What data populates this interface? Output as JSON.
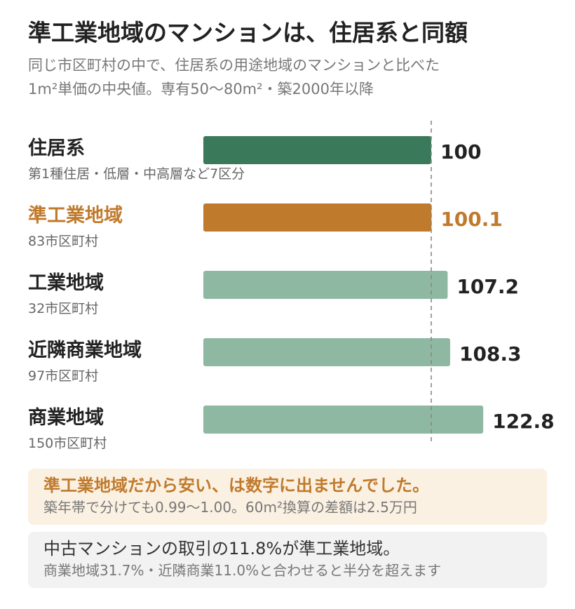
{
  "header": {
    "title": "準工業地域のマンションは、住居系と同額",
    "subtitle_line1": "同じ市区町村の中で、住居系の用途地域のマンションと比べた",
    "subtitle_line2": "1m²単価の中央値。専有50〜80m²・築2000年以降"
  },
  "chart_data": {
    "type": "bar",
    "orientation": "horizontal",
    "categories": [
      "住居系",
      "準工業地域",
      "工業地域",
      "近隣商業地域",
      "商業地域"
    ],
    "subcategories": [
      "第1種住居・低層・中高層など7区分",
      "83市区町村",
      "32市区町村",
      "97市区町村",
      "150市区町村"
    ],
    "values": [
      100,
      100.1,
      107.2,
      108.3,
      122.8
    ],
    "value_labels": [
      "100",
      "100.1",
      "107.2",
      "108.3",
      "122.8"
    ],
    "reference_line": 100,
    "colors": {
      "base": "#3a7a5b",
      "highlight": "#c07a2c",
      "other": "#8fb8a3",
      "reference": "#888888"
    },
    "bar_colors": [
      "#3a7a5b",
      "#c07a2c",
      "#8fb8a3",
      "#8fb8a3",
      "#8fb8a3"
    ],
    "label_colors": [
      "#222222",
      "#c07a2c",
      "#222222",
      "#222222",
      "#222222"
    ],
    "highlight_index": 1
  },
  "callouts": {
    "orange": {
      "headline": "準工業地域だから安い、は数字に出ませんでした。",
      "body": "築年帯で分けても0.99〜1.00。60m²換算の差額は2.5万円",
      "accent": "#c07a2c"
    },
    "gray": {
      "headline": "中古マンションの取引の11.8%が準工業地域。",
      "body": "商業地域31.7%・近隣商業11.0%と合わせると半分を超えます"
    }
  }
}
